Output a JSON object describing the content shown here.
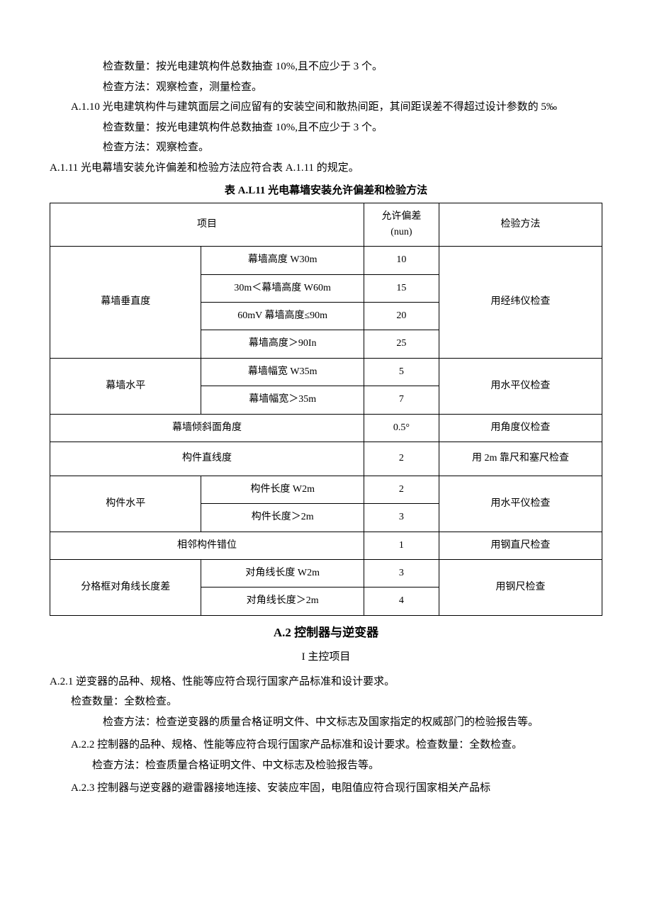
{
  "pretext": {
    "l1": "检查数量：按光电建筑构件总数抽查 10%,且不应少于 3 个。",
    "l2": "检查方法：观察检查，测量检查。",
    "a110": "A.1.10 光电建筑构件与建筑面层之间应留有的安装空间和散热间距，其间距误差不得超过设计参数的 5‰",
    "l3": "检查数量：按光电建筑构件总数抽查 10%,且不应少于 3 个。",
    "l4": "检查方法：观察检查。",
    "a111": "A.1.11 光电幕墙安装允许偏差和检验方法应符合表 A.1.11 的规定。"
  },
  "table": {
    "title": "表 A.L11 光电幕墙安装允许偏差和检验方法",
    "header": {
      "item": "项目",
      "tol": "允许偏差",
      "tol_unit": "(nun)",
      "method": "检验方法"
    },
    "rows": {
      "r1_cat": "幕墙垂直度",
      "r1a_cond": "幕墙高度 W30m",
      "r1a_tol": "10",
      "r1b_cond": "30m＜幕墙高度 W60m",
      "r1b_tol": "15",
      "r1c_cond": "60mV 幕墙高度≤90m",
      "r1c_tol": "20",
      "r1d_cond": "幕墙高度＞90In",
      "r1d_tol": "25",
      "r1_method": "用经纬仪检查",
      "r2_cat": "幕墙水平",
      "r2a_cond": "幕墙幅宽 W35m",
      "r2a_tol": "5",
      "r2b_cond": "幕墙幅宽＞35m",
      "r2b_tol": "7",
      "r2_method": "用水平仪检查",
      "r3_cat": "幕墙倾斜面角度",
      "r3_tol": "0.5°",
      "r3_method": "用角度仪检查",
      "r4_cat": "构件直线度",
      "r4_tol": "2",
      "r4_method": "用 2m 靠尺和塞尺检查",
      "r5_cat": "构件水平",
      "r5a_cond": "构件长度 W2m",
      "r5a_tol": "2",
      "r5b_cond": "构件长度＞2m",
      "r5b_tol": "3",
      "r5_method": "用水平仪检查",
      "r6_cat": "相邻构件错位",
      "r6_tol": "1",
      "r6_method": "用钢直尺检查",
      "r7_cat": "分格框对角线长度差",
      "r7a_cond": "对角线长度 W2m",
      "r7a_tol": "3",
      "r7b_cond": "对角线长度＞2m",
      "r7b_tol": "4",
      "r7_method": "用钢尺检查"
    }
  },
  "sectionA2": {
    "title": "A.2 控制器与逆变器",
    "subtitle": "I 主控项目",
    "a221_head": "A.2.1 逆变器的品种、规格、性能等应符合现行国家产品标准和设计要求。",
    "a221_qty": "检查数量：全数检查。",
    "a221_method": "检查方法：检查逆变器的质量合格证明文件、中文标志及国家指定的权威部门的检验报告等。",
    "a222_head": "A.2.2 控制器的品种、规格、性能等应符合现行国家产品标准和设计要求。检查数量：全数检查。",
    "a222_method": "检查方法：检查质量合格证明文件、中文标志及检验报告等。",
    "a223_head": "A.2.3 控制器与逆变器的避雷器接地连接、安装应牢固，电阻值应符合现行国家相关产品标"
  }
}
